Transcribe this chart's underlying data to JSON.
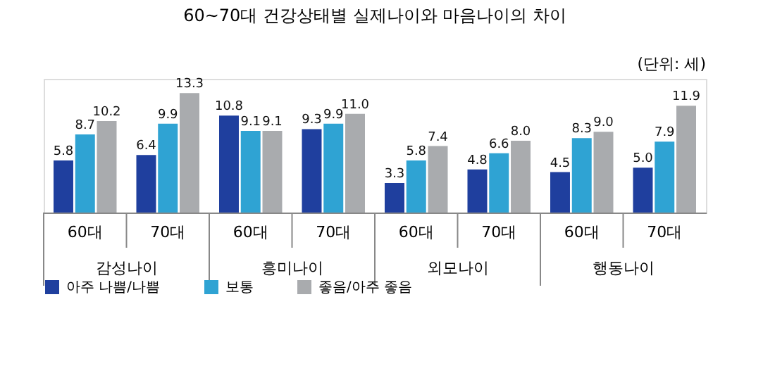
{
  "chart_data": {
    "type": "bar",
    "title": "60~70대 건강상태별 실제나이와 마음나이의 차이",
    "categories": [
      "60대",
      "70대",
      "60대",
      "70대",
      "60대",
      "70대",
      "60대",
      "70대"
    ],
    "series": [
      {
        "name": "아주 나쁨/나쁨",
        "color": "#1f3f9e",
        "values": [
          5.8,
          6.4,
          10.8,
          9.3,
          3.3,
          4.8,
          4.5,
          5.0
        ],
        "value_labels": [
          "5.8",
          "6.4",
          "10.8",
          "9.3",
          "3.3",
          "4.8",
          "4.5",
          "5.0"
        ]
      },
      {
        "name": "보통",
        "color": "#2fa3d3",
        "values": [
          8.7,
          9.9,
          9.1,
          9.9,
          5.8,
          6.6,
          8.3,
          7.9
        ],
        "value_labels": [
          "8.7",
          "9.9",
          "9.1",
          "9.9",
          "5.8",
          "6.6",
          "8.3",
          "7.9"
        ]
      },
      {
        "name": "좋음/아주 좋음",
        "color": "#a9abae",
        "values": [
          10.2,
          13.3,
          9.1,
          11.0,
          7.4,
          8.0,
          9.0,
          11.9
        ],
        "value_labels": [
          "10.2",
          "13.3",
          "9.1",
          "11.0",
          "7.4",
          "8.0",
          "9.0",
          "11.9"
        ]
      }
    ],
    "annotations": [
      "(단위: 세)",
      "감성나이",
      "흥미나이",
      "외모나이",
      "행동나이"
    ],
    "legend": "bottom",
    "grid": false
  }
}
